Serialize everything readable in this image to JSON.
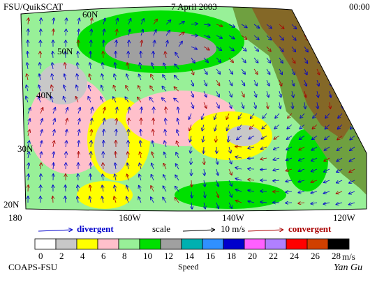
{
  "header": {
    "left": "FSU/QuikSCAT",
    "center": "7 April 2003",
    "right": "00:00"
  },
  "map": {
    "lat_labels": [
      "60N",
      "50N",
      "40N",
      "30N",
      "20N"
    ],
    "lon_labels": [
      "180",
      "160W",
      "140W",
      "120W"
    ]
  },
  "legend": {
    "divergent": "divergent",
    "scale": "scale",
    "scale_value": "10 m/s",
    "convergent": "convergent"
  },
  "colorbar": {
    "labels": [
      0,
      2,
      4,
      6,
      8,
      10,
      12,
      14,
      16,
      18,
      20,
      22,
      24,
      26,
      28
    ],
    "unit": "m/s",
    "title": "Speed"
  },
  "footer": {
    "credit": "COAPS-FSU",
    "signature": "Yan Gu"
  }
}
